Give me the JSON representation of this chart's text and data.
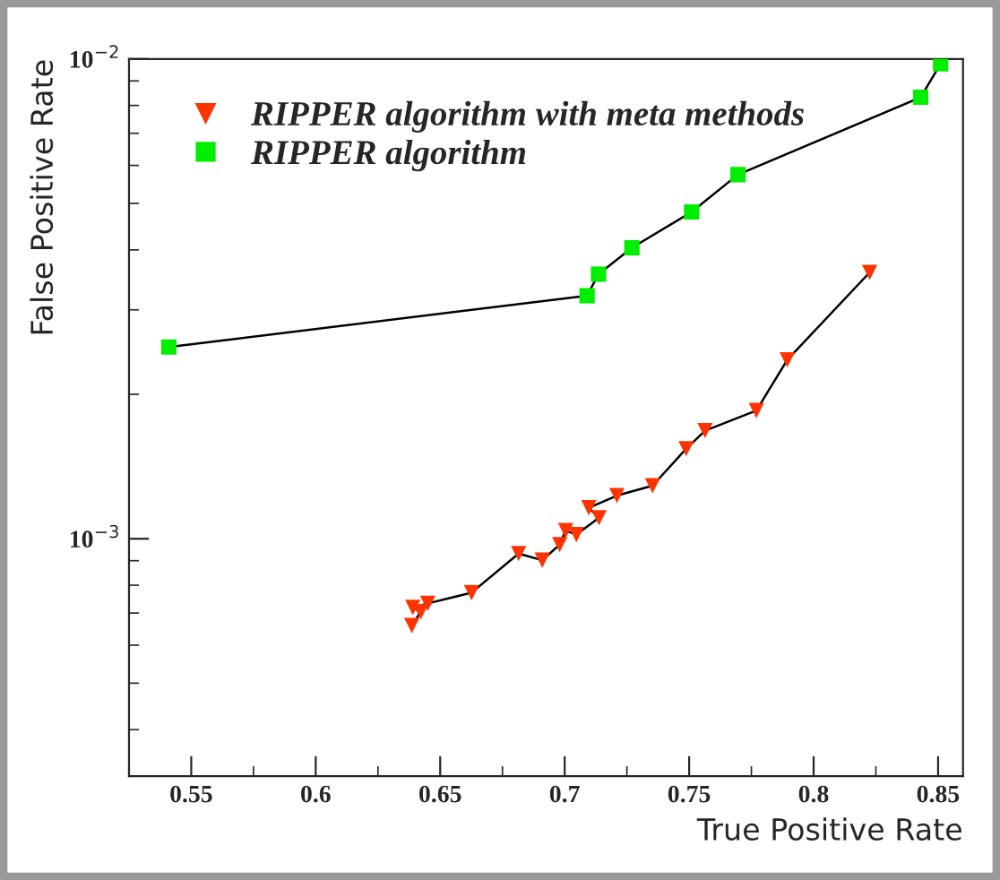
{
  "chart_data": {
    "type": "line",
    "xlabel": "True Positive Rate",
    "ylabel": "False Positive Rate",
    "log": "y",
    "xlim": [
      0.525,
      0.86
    ],
    "xticks": [
      0.55,
      0.6,
      0.65,
      0.7,
      0.75,
      0.8,
      0.85
    ],
    "ylim": [
      0.00032,
      0.01
    ],
    "yticks": [
      {
        "value": 0.001,
        "label": "10$^{−3}$"
      },
      {
        "value": 0.01,
        "label": "10$^{−2}$"
      }
    ],
    "grid": false,
    "legend": "top left",
    "line_style": "solid",
    "series": [
      {
        "name": "RIPPER algorithm with meta methods",
        "color": "#ff3300",
        "marker": "triangle",
        "x": [
          0.6386,
          0.6422,
          0.639,
          0.645,
          0.6626,
          0.6815,
          0.691,
          0.698,
          0.7004,
          0.7047,
          0.7138,
          0.7097,
          0.721,
          0.7353,
          0.7488,
          0.7564,
          0.777,
          0.7894,
          0.8225
        ],
        "values": [
          0.000659,
          0.000704,
          0.000719,
          0.000733,
          0.000772,
          0.000931,
          0.000902,
          0.000972,
          0.00104,
          0.00102,
          0.001106,
          0.00116,
          0.00123,
          0.00129,
          0.00154,
          0.00168,
          0.00185,
          0.00236,
          0.00359
        ]
      },
      {
        "name": "RIPPER algorithm",
        "color": "#00ee00",
        "marker": "square",
        "x": [
          0.541,
          0.709,
          0.7136,
          0.727,
          0.751,
          0.7696,
          0.843,
          0.851
        ],
        "values": [
          0.00251,
          0.00321,
          0.00356,
          0.00404,
          0.0048,
          0.00574,
          0.00832,
          0.00977
        ]
      }
    ]
  }
}
